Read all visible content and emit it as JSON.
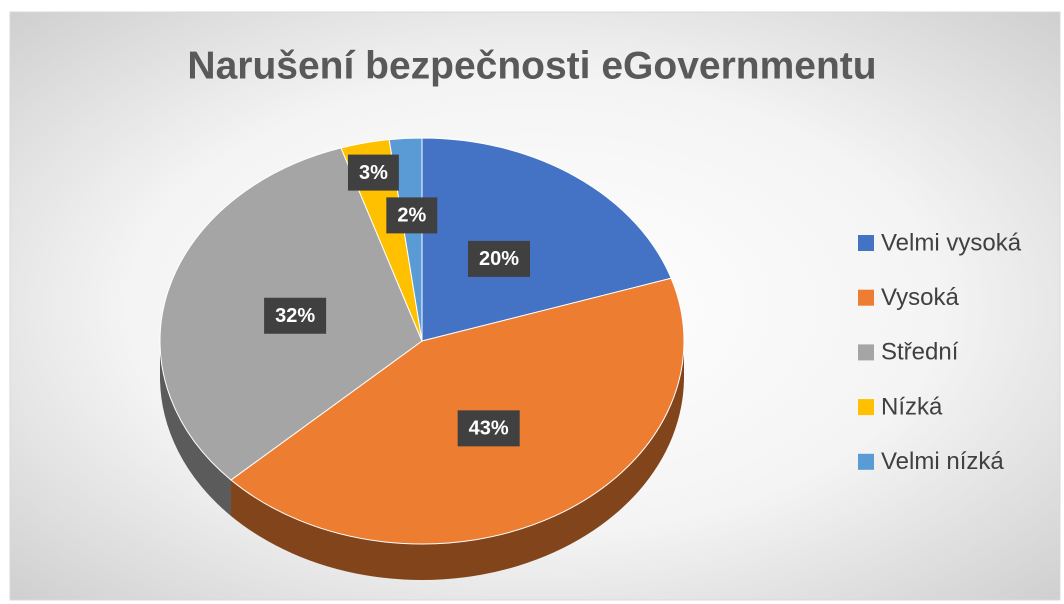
{
  "chart_data": {
    "type": "pie",
    "title": "Narušení bezpečnosti eGovernmentu",
    "categories": [
      "Velmi vysoká",
      "Vysoká",
      "Střední",
      "Nízká",
      "Velmi nízká"
    ],
    "values": [
      20,
      43,
      32,
      3,
      2
    ],
    "value_labels": [
      "20%",
      "43%",
      "32%",
      "3%",
      "2%"
    ],
    "colors": [
      "#4472c4",
      "#ed7d31",
      "#a5a5a5",
      "#ffc000",
      "#5b9bd5"
    ],
    "legend": "right"
  }
}
